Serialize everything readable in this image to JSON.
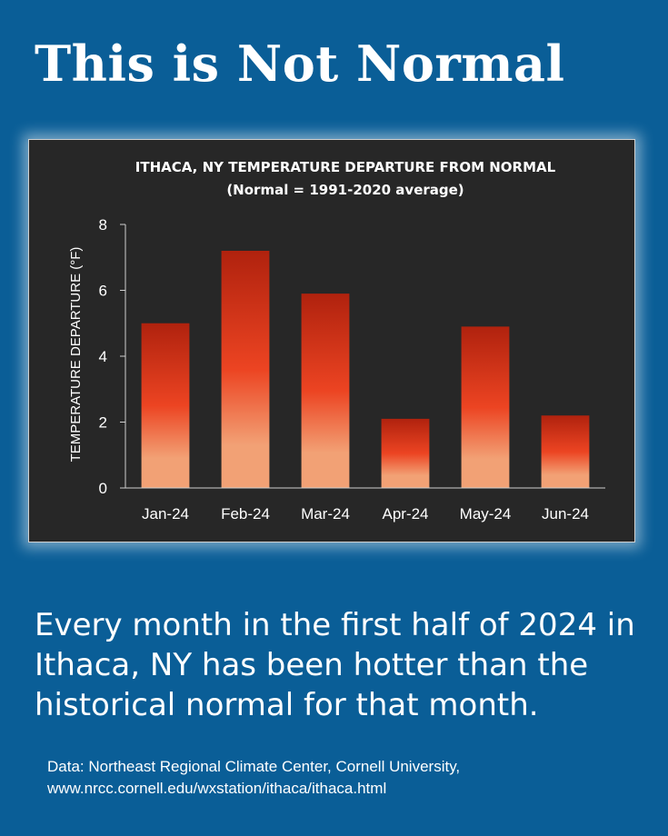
{
  "headline": "This is Not Normal",
  "body_text": "Every month in the first half of 2024 in Ithaca, NY has been hotter than the historical normal for that month.",
  "source_line1": "Data: Northeast Regional Climate Center, Cornell University,",
  "source_line2": "www.nrcc.cornell.edu/wxstation/ithaca/ithaca.html",
  "colors": {
    "background": "#0a5e97",
    "panel": "#272727",
    "bar_top": "#b0220e",
    "bar_mid": "#ec4422",
    "bar_bottom": "#f2a175"
  },
  "chart_data": {
    "type": "bar",
    "title": "ITHACA, NY TEMPERATURE DEPARTURE FROM NORMAL",
    "subtitle": "(Normal = 1991-2020 average)",
    "xlabel": "",
    "ylabel": "TEMPERATURE DEPARTURE (°F)",
    "categories": [
      "Jan-24",
      "Feb-24",
      "Mar-24",
      "Apr-24",
      "May-24",
      "Jun-24"
    ],
    "values": [
      5.0,
      7.2,
      5.9,
      2.1,
      4.9,
      2.2
    ],
    "ylim": [
      0,
      8
    ],
    "yticks": [
      "0",
      "2",
      "4",
      "6",
      "8"
    ],
    "grid": false,
    "legend": "none"
  }
}
